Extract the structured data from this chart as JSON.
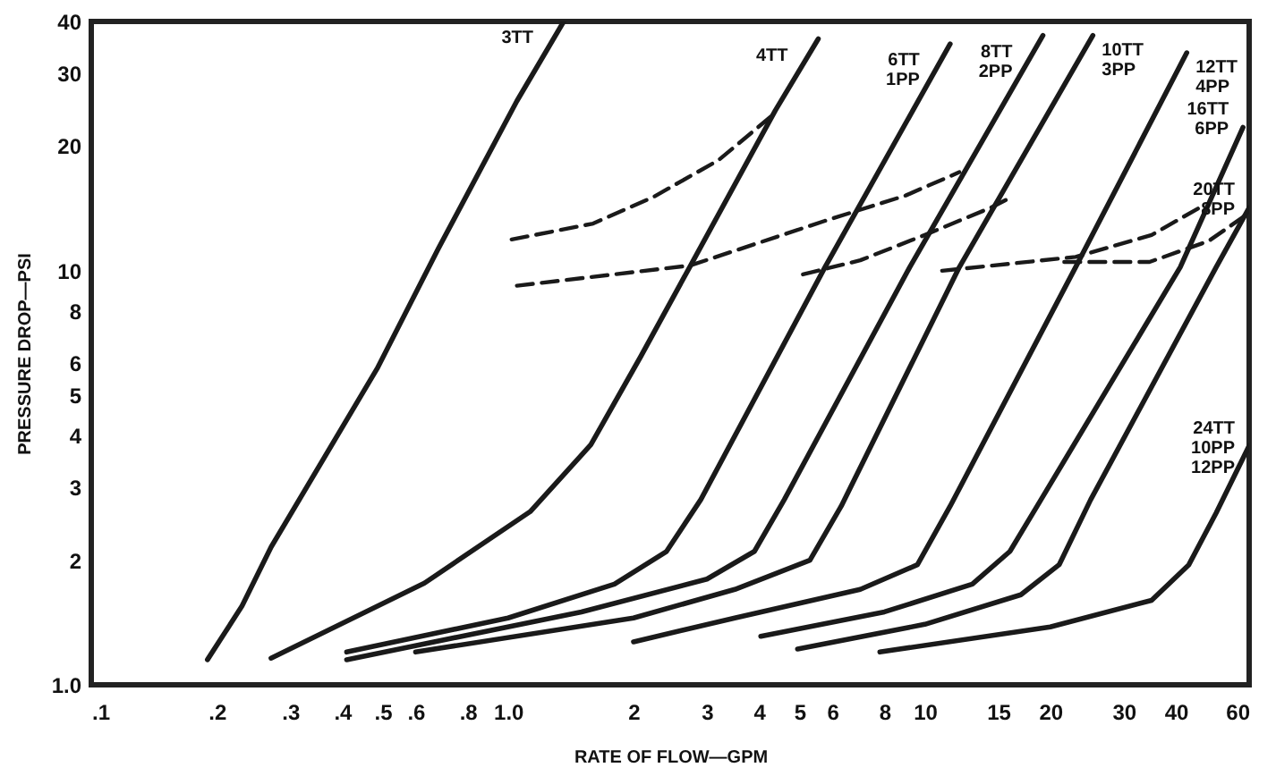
{
  "chart_data": {
    "type": "line",
    "xlabel": "RATE OF FLOW—GPM",
    "ylabel": "PRESSURE DROP—PSI",
    "log": "xy",
    "grid": false,
    "marker": "none",
    "xlim": [
      0.1,
      60
    ],
    "ylim": [
      1.0,
      40
    ],
    "xticks": [
      {
        "value": 0.1,
        "label": ".1"
      },
      {
        "value": 0.2,
        "label": ".2"
      },
      {
        "value": 0.3,
        "label": ".3"
      },
      {
        "value": 0.4,
        "label": ".4"
      },
      {
        "value": 0.5,
        "label": ".5"
      },
      {
        "value": 0.6,
        "label": ".6"
      },
      {
        "value": 0.8,
        "label": ".8"
      },
      {
        "value": 1,
        "label": "1.0"
      },
      2,
      3,
      4,
      5,
      6,
      8,
      10,
      15,
      20,
      30,
      40,
      60
    ],
    "yticks": [
      {
        "value": 1,
        "label": "1.0"
      },
      2,
      3,
      4,
      5,
      6,
      8,
      10,
      20,
      30,
      40
    ],
    "series": [
      {
        "name": "3TT",
        "color": "#1a1a1a",
        "line_style": "solid",
        "x": [
          0.19,
          0.23,
          0.27,
          0.485,
          0.68,
          1.05,
          1.36
        ],
        "values": [
          1.15,
          1.55,
          2.15,
          5.8,
          11.3,
          25.7,
          40
        ]
      },
      {
        "name": "4TT",
        "color": "#1a1a1a",
        "line_style": "solid",
        "x": [
          0.27,
          0.63,
          1.13,
          1.58,
          2.08,
          2.77,
          4.38,
          5.55
        ],
        "values": [
          1.16,
          1.76,
          2.62,
          3.8,
          6.2,
          10.5,
          24.4,
          36.3
        ]
      },
      {
        "name": "6TT\n1PP",
        "color": "#1a1a1a",
        "line_style": "solid",
        "x": [
          0.41,
          1.0,
          1.8,
          2.4,
          2.9,
          5.76,
          11.5
        ],
        "values": [
          1.2,
          1.45,
          1.75,
          2.1,
          2.8,
          10.2,
          35.3
        ]
      },
      {
        "name": "8TT\n2PP",
        "color": "#1a1a1a",
        "line_style": "solid",
        "x": [
          0.41,
          1.5,
          3.0,
          3.9,
          4.6,
          9.2,
          19.2
        ],
        "values": [
          1.15,
          1.5,
          1.8,
          2.1,
          2.8,
          10.2,
          37
        ]
      },
      {
        "name": "10TT\n3PP",
        "color": "#1a1a1a",
        "line_style": "solid",
        "x": [
          0.6,
          2.0,
          3.5,
          5.3,
          6.3,
          12.1,
          25.3
        ],
        "values": [
          1.2,
          1.45,
          1.7,
          2.0,
          2.7,
          10.2,
          37
        ]
      },
      {
        "name": "12TT\n4PP",
        "color": "#1a1a1a",
        "line_style": "solid",
        "x": [
          2.0,
          3.5,
          7.0,
          9.6,
          11.5,
          23,
          42.5
        ],
        "values": [
          1.27,
          1.45,
          1.7,
          1.95,
          2.7,
          10.2,
          33.6
        ]
      },
      {
        "name": "16TT\n6PP",
        "color": "#1a1a1a",
        "line_style": "solid",
        "x": [
          4.04,
          8,
          13,
          16,
          19,
          41,
          58
        ],
        "values": [
          1.31,
          1.5,
          1.75,
          2.1,
          2.8,
          10.2,
          22.2
        ]
      },
      {
        "name": "20TT\n8PP",
        "color": "#1a1a1a",
        "line_style": "solid",
        "x": [
          4.95,
          10,
          17,
          21,
          25,
          50,
          60
        ],
        "values": [
          1.22,
          1.4,
          1.65,
          1.95,
          2.8,
          10.2,
          14.2
        ]
      },
      {
        "name": "24TT\n10PP\n12PP",
        "color": "#1a1a1a",
        "line_style": "solid",
        "x": [
          7.8,
          20,
          35,
          43,
          50,
          60
        ],
        "values": [
          1.2,
          1.38,
          1.6,
          1.95,
          2.6,
          3.78
        ]
      },
      {
        "color": "#1a1a1a",
        "line_style": "dashed",
        "x": [
          1.02,
          1.6,
          2.24,
          3.2,
          4.3
        ],
        "values": [
          11.9,
          13,
          15.1,
          18.5,
          23.7
        ]
      },
      {
        "color": "#1a1a1a",
        "line_style": "dashed",
        "x": [
          1.05,
          2.74,
          5.76,
          9,
          12.1
        ],
        "values": [
          9.2,
          10.3,
          13.2,
          15.2,
          17.3
        ]
      },
      {
        "color": "#1a1a1a",
        "line_style": "dashed",
        "x": [
          5.1,
          7,
          10,
          14.4,
          16
        ],
        "values": [
          9.8,
          10.6,
          12.2,
          14.2,
          15
        ]
      },
      {
        "color": "#1a1a1a",
        "line_style": "dashed",
        "x": [
          11,
          23,
          35,
          45.6
        ],
        "values": [
          10,
          10.8,
          12.2,
          14.2
        ]
      },
      {
        "color": "#1a1a1a",
        "line_style": "dashed",
        "x": [
          21.6,
          34.6,
          48,
          60
        ],
        "values": [
          10.5,
          10.5,
          11.8,
          13.8
        ]
      }
    ]
  }
}
